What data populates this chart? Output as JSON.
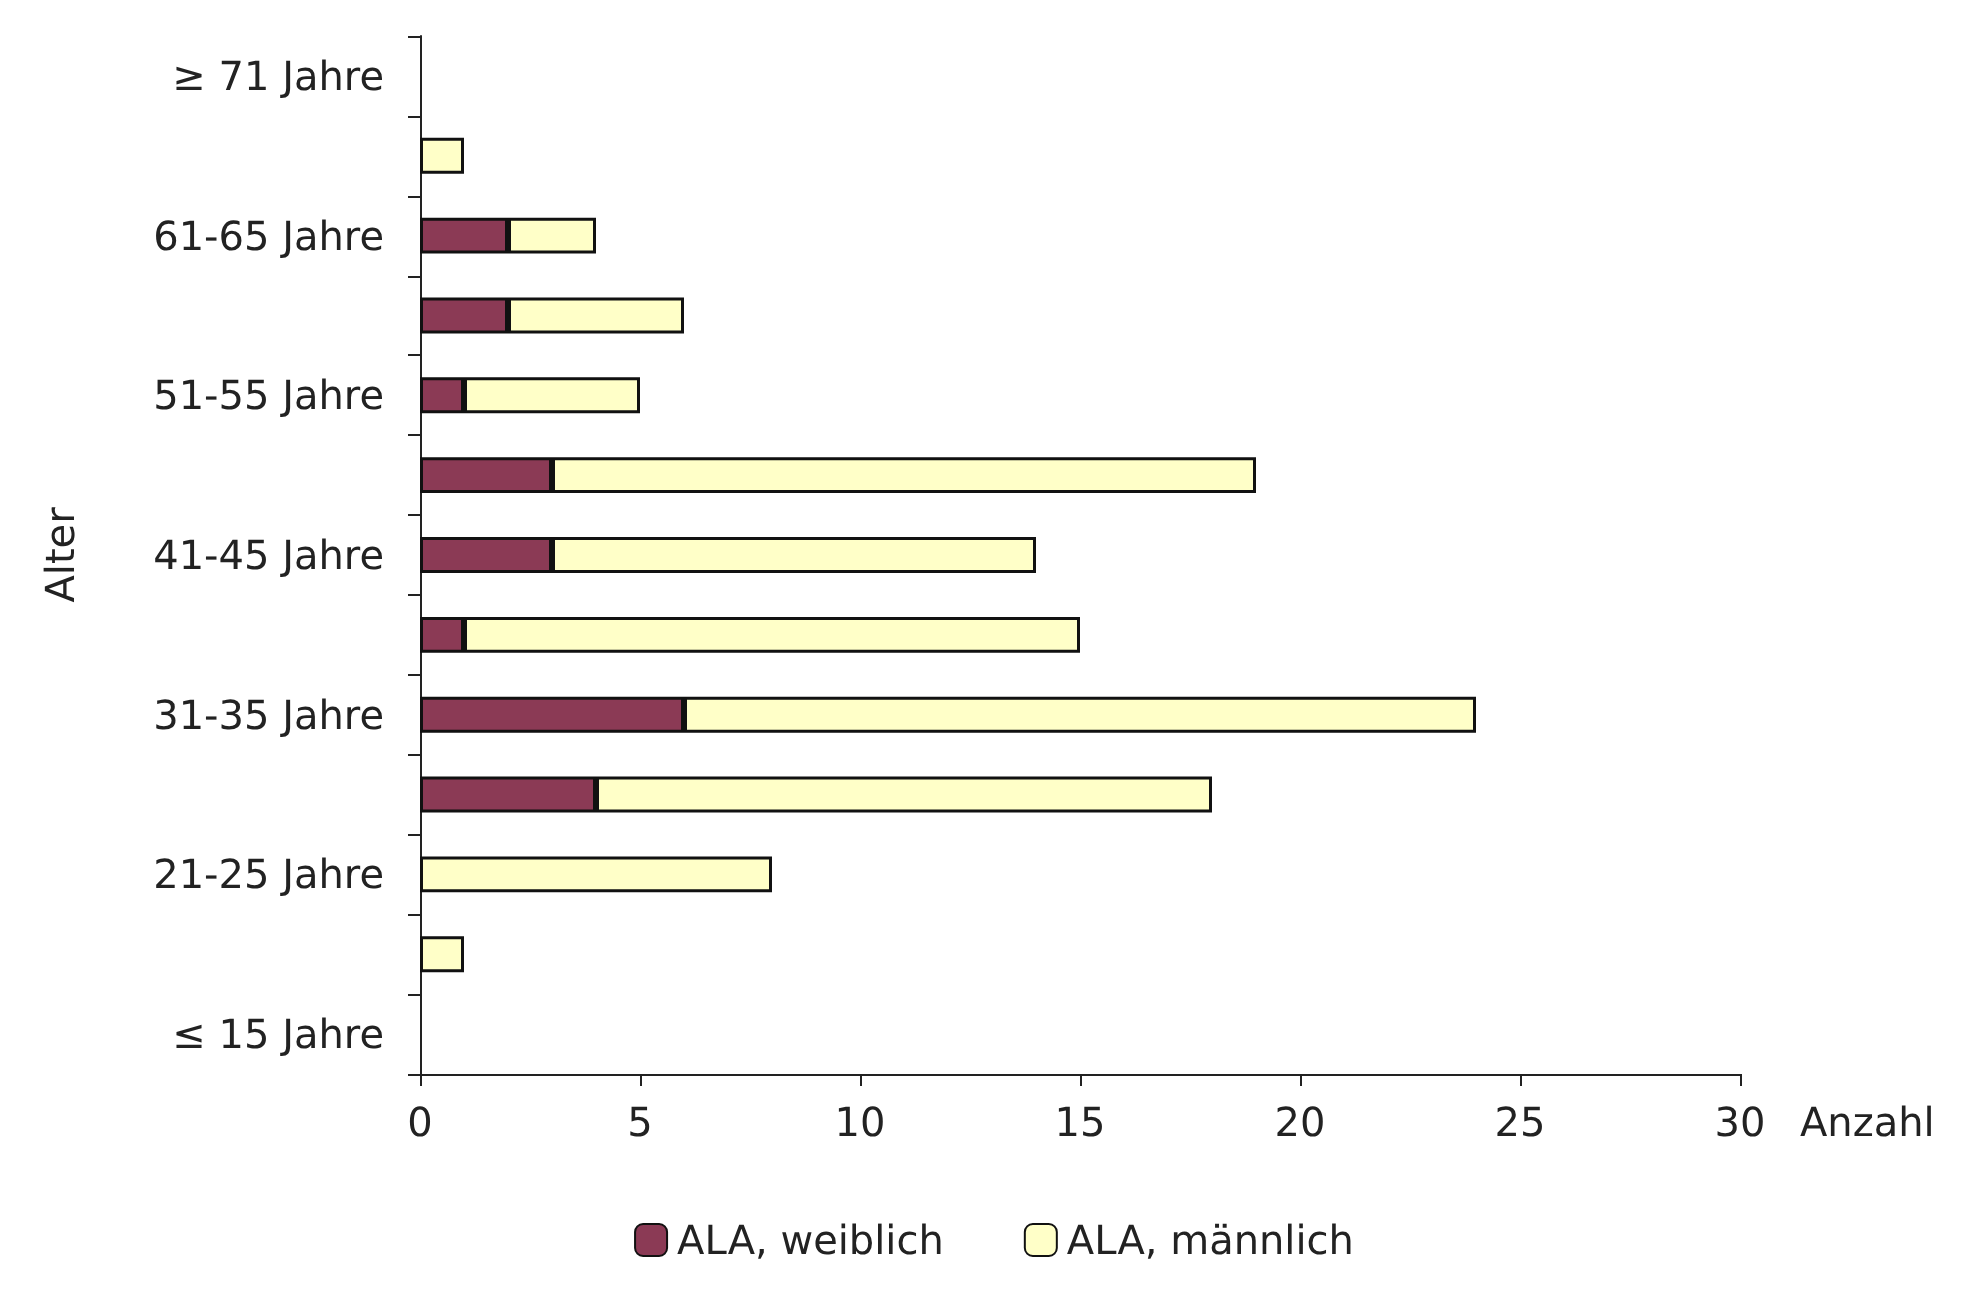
{
  "chart_data": {
    "type": "bar",
    "orientation": "horizontal",
    "stacked": true,
    "categories": [
      "≥ 71 Jahre",
      null,
      "61-65 Jahre",
      null,
      "51-55 Jahre",
      null,
      "41-45 Jahre",
      null,
      "31-35 Jahre",
      null,
      "21-25 Jahre",
      null,
      "≤ 15 Jahre"
    ],
    "series": [
      {
        "name": "ALA, weiblich",
        "color": "#8b3a55",
        "values": [
          0,
          0,
          2,
          2,
          1,
          3,
          3,
          1,
          6,
          4,
          0,
          0,
          0
        ]
      },
      {
        "name": "ALA, männlich",
        "color": "#ffffc8",
        "values": [
          0,
          1,
          2,
          4,
          4,
          16,
          11,
          14,
          18,
          14,
          8,
          1,
          0
        ]
      }
    ],
    "xlim": [
      0,
      30
    ],
    "xticks": [
      0,
      5,
      10,
      15,
      20,
      25,
      30
    ],
    "xlabel": "Anzahl",
    "ylabel": "Alter",
    "grid": false,
    "legend": "bottom"
  }
}
